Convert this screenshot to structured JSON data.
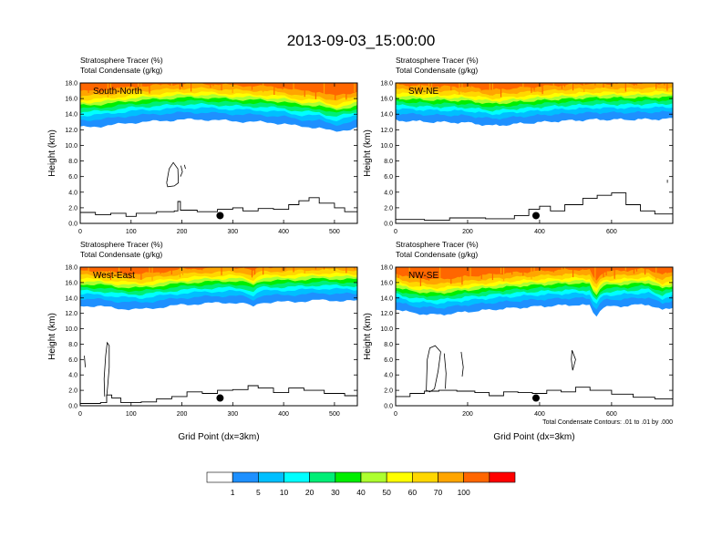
{
  "title": "2013-09-03_15:00:00",
  "colors": {
    "levels": [
      "#ffffff",
      "#1e90ff",
      "#00bfff",
      "#00ffff",
      "#00ee76",
      "#00ee00",
      "#adff2f",
      "#ffff00",
      "#ffd700",
      "#ffa500",
      "#ff6600",
      "#ff0000"
    ],
    "contour": "#000000",
    "terrain": "#000000",
    "site_marker": "#000000"
  },
  "colorbar": {
    "labels": [
      "1",
      "5",
      "10",
      "20",
      "30",
      "40",
      "50",
      "60",
      "70",
      "100"
    ]
  },
  "contour_note": "Total Condensate Contours: .01 to .01 by .000",
  "chart_data": [
    {
      "type": "heatmap",
      "name": "South-North",
      "header": [
        "Stratosphere Tracer   (%)",
        "Total Condensate   (g/kg)"
      ],
      "ylabel": "Height (km)",
      "xlabel": "",
      "xlim": [
        0,
        545
      ],
      "ylim": [
        0,
        18
      ],
      "xticks": [
        0,
        100,
        200,
        300,
        400,
        500
      ],
      "yticks": [
        "0.0",
        "2.0",
        "4.0",
        "6.0",
        "8.0",
        "10.0",
        "12.0",
        "14.0",
        "16.0",
        "18.0"
      ],
      "tracer_base_km": [
        [
          0,
          12.3
        ],
        [
          50,
          12.5
        ],
        [
          100,
          12.9
        ],
        [
          150,
          13.1
        ],
        [
          200,
          13.3
        ],
        [
          250,
          13.3
        ],
        [
          300,
          13.1
        ],
        [
          350,
          13.0
        ],
        [
          400,
          12.8
        ],
        [
          430,
          12.4
        ],
        [
          470,
          12.3
        ],
        [
          500,
          11.7
        ],
        [
          545,
          12.3
        ]
      ],
      "terrain_km": [
        [
          0,
          1.4
        ],
        [
          30,
          1.1
        ],
        [
          60,
          1.3
        ],
        [
          90,
          0.9
        ],
        [
          110,
          1.3
        ],
        [
          150,
          1.5
        ],
        [
          185,
          1.6
        ],
        [
          192,
          2.8
        ],
        [
          197,
          1.7
        ],
        [
          230,
          1.5
        ],
        [
          270,
          1.8
        ],
        [
          300,
          2.0
        ],
        [
          320,
          1.6
        ],
        [
          350,
          1.9
        ],
        [
          380,
          1.8
        ],
        [
          410,
          2.4
        ],
        [
          430,
          2.9
        ],
        [
          450,
          3.3
        ],
        [
          470,
          2.6
        ],
        [
          500,
          2.0
        ],
        [
          520,
          1.5
        ],
        [
          545,
          1.8
        ]
      ],
      "site_marker": [
        275,
        1.0
      ],
      "cloud_contours_km": [
        [
          [
            170,
            5.2
          ],
          [
            175,
            7.0
          ],
          [
            183,
            7.8
          ],
          [
            192,
            7.0
          ],
          [
            193,
            5.2
          ],
          [
            185,
            4.8
          ],
          [
            172,
            4.7
          ],
          [
            170,
            5.2
          ]
        ],
        [
          [
            198,
            7.4
          ],
          [
            201,
            6.6
          ],
          [
            197,
            6.0
          ]
        ],
        [
          [
            205,
            7.5
          ],
          [
            207,
            7.0
          ]
        ]
      ]
    },
    {
      "type": "heatmap",
      "name": "SW-NE",
      "header": [
        "Stratosphere Tracer   (%)",
        "Total Condensate   (g/kg)"
      ],
      "ylabel": "Height (km)",
      "xlabel": "",
      "xlim": [
        0,
        770
      ],
      "ylim": [
        0,
        18
      ],
      "xticks": [
        0,
        200,
        400,
        600
      ],
      "yticks": [
        "0.0",
        "2.0",
        "4.0",
        "6.0",
        "8.0",
        "10.0",
        "12.0",
        "14.0",
        "16.0",
        "18.0"
      ],
      "tracer_base_km": [
        [
          0,
          13.2
        ],
        [
          100,
          13.0
        ],
        [
          200,
          12.9
        ],
        [
          270,
          12.5
        ],
        [
          350,
          12.8
        ],
        [
          450,
          13.1
        ],
        [
          550,
          13.3
        ],
        [
          650,
          13.3
        ],
        [
          770,
          13.4
        ]
      ],
      "terrain_km": [
        [
          0,
          0.5
        ],
        [
          80,
          0.4
        ],
        [
          150,
          0.7
        ],
        [
          250,
          0.6
        ],
        [
          330,
          1.0
        ],
        [
          370,
          1.8
        ],
        [
          400,
          2.2
        ],
        [
          430,
          1.6
        ],
        [
          470,
          2.4
        ],
        [
          520,
          3.2
        ],
        [
          560,
          3.6
        ],
        [
          600,
          3.9
        ],
        [
          640,
          2.4
        ],
        [
          680,
          1.6
        ],
        [
          720,
          1.2
        ],
        [
          770,
          1.0
        ]
      ],
      "site_marker": [
        390,
        1.0
      ],
      "cloud_contours_km": [
        [
          [
            755,
            5.6
          ],
          [
            755,
            5.2
          ]
        ]
      ]
    },
    {
      "type": "heatmap",
      "name": "West-East",
      "header": [
        "Stratosphere Tracer   (%)",
        "Total Condensate   (g/kg)"
      ],
      "ylabel": "Height (km)",
      "xlabel": "Grid Point (dx=3km)",
      "xlim": [
        0,
        545
      ],
      "ylim": [
        0,
        18
      ],
      "xticks": [
        0,
        100,
        200,
        300,
        400,
        500
      ],
      "yticks": [
        "0.0",
        "2.0",
        "4.0",
        "6.0",
        "8.0",
        "10.0",
        "12.0",
        "14.0",
        "16.0",
        "18.0"
      ],
      "tracer_base_km": [
        [
          0,
          13.0
        ],
        [
          40,
          12.9
        ],
        [
          80,
          12.6
        ],
        [
          120,
          12.5
        ],
        [
          160,
          12.8
        ],
        [
          200,
          13.1
        ],
        [
          250,
          13.3
        ],
        [
          300,
          13.4
        ],
        [
          330,
          13.2
        ],
        [
          340,
          12.7
        ],
        [
          350,
          13.4
        ],
        [
          420,
          13.5
        ],
        [
          470,
          13.7
        ],
        [
          545,
          13.6
        ]
      ],
      "terrain_km": [
        [
          0,
          0.3
        ],
        [
          40,
          0.4
        ],
        [
          52,
          1.4
        ],
        [
          62,
          1.0
        ],
        [
          80,
          0.4
        ],
        [
          120,
          0.5
        ],
        [
          150,
          0.9
        ],
        [
          180,
          1.2
        ],
        [
          210,
          1.8
        ],
        [
          240,
          1.6
        ],
        [
          270,
          2.0
        ],
        [
          300,
          2.1
        ],
        [
          330,
          2.6
        ],
        [
          350,
          2.3
        ],
        [
          380,
          1.7
        ],
        [
          410,
          2.3
        ],
        [
          440,
          2.0
        ],
        [
          480,
          1.6
        ],
        [
          520,
          1.3
        ],
        [
          545,
          1.2
        ]
      ],
      "site_marker": [
        275,
        1.0
      ],
      "cloud_contours_km": [
        [
          [
            48,
            1.2
          ],
          [
            47,
            3.5
          ],
          [
            50,
            6.5
          ],
          [
            53,
            8.2
          ],
          [
            57,
            7.8
          ],
          [
            57,
            5.0
          ],
          [
            54,
            2.5
          ],
          [
            52,
            1.2
          ]
        ],
        [
          [
            8,
            6.5
          ],
          [
            10,
            5.0
          ]
        ]
      ]
    },
    {
      "type": "heatmap",
      "name": "NW-SE",
      "header": [
        "Stratosphere Tracer   (%)",
        "Total Condensate   (g/kg)"
      ],
      "ylabel": "Height (km)",
      "xlabel": "Grid Point (dx=3km)",
      "xlim": [
        0,
        770
      ],
      "ylim": [
        0,
        18
      ],
      "xticks": [
        0,
        200,
        400,
        600
      ],
      "yticks": [
        "0.0",
        "2.0",
        "4.0",
        "6.0",
        "8.0",
        "10.0",
        "12.0",
        "14.0",
        "16.0",
        "18.0"
      ],
      "tracer_base_km": [
        [
          0,
          12.6
        ],
        [
          50,
          12.0
        ],
        [
          120,
          11.8
        ],
        [
          200,
          12.2
        ],
        [
          300,
          12.6
        ],
        [
          400,
          12.9
        ],
        [
          500,
          13.1
        ],
        [
          540,
          13.0
        ],
        [
          555,
          11.5
        ],
        [
          575,
          12.8
        ],
        [
          650,
          13.0
        ],
        [
          700,
          13.2
        ],
        [
          740,
          12.4
        ],
        [
          770,
          12.8
        ]
      ],
      "terrain_km": [
        [
          0,
          1.2
        ],
        [
          40,
          1.6
        ],
        [
          80,
          1.9
        ],
        [
          120,
          2.0
        ],
        [
          170,
          1.9
        ],
        [
          220,
          1.7
        ],
        [
          260,
          1.3
        ],
        [
          300,
          1.8
        ],
        [
          340,
          1.7
        ],
        [
          380,
          1.6
        ],
        [
          420,
          2.0
        ],
        [
          460,
          1.8
        ],
        [
          500,
          2.4
        ],
        [
          540,
          2.0
        ],
        [
          600,
          1.5
        ],
        [
          660,
          1.1
        ],
        [
          720,
          0.9
        ],
        [
          770,
          0.3
        ]
      ],
      "site_marker": [
        390,
        1.0
      ],
      "cloud_contours_km": [
        [
          [
            85,
            2.0
          ],
          [
            88,
            6.0
          ],
          [
            95,
            7.5
          ],
          [
            110,
            7.8
          ],
          [
            125,
            7.0
          ],
          [
            118,
            4.5
          ],
          [
            108,
            2.2
          ],
          [
            95,
            1.8
          ],
          [
            85,
            2.0
          ]
        ],
        [
          [
            135,
            6.8
          ],
          [
            140,
            4.2
          ],
          [
            138,
            2.2
          ]
        ],
        [
          [
            182,
            7.0
          ],
          [
            188,
            5.0
          ],
          [
            185,
            3.8
          ]
        ],
        [
          [
            490,
            7.2
          ],
          [
            500,
            6.0
          ],
          [
            492,
            4.6
          ],
          [
            488,
            6.0
          ],
          [
            490,
            7.2
          ]
        ]
      ]
    }
  ]
}
